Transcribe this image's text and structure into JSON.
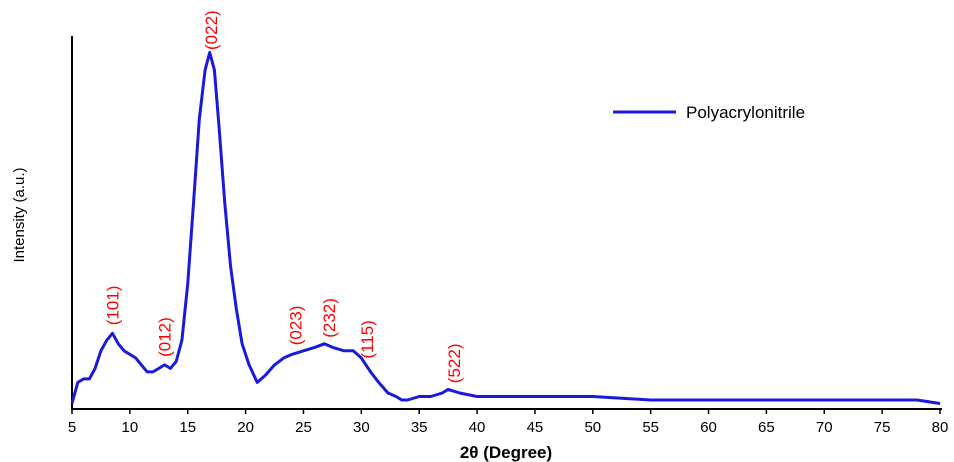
{
  "chart_data": {
    "type": "line",
    "title": "",
    "xlabel": "2θ (Degree)",
    "ylabel": "Intensity (a.u.)",
    "xlim": [
      5,
      80
    ],
    "ylim": [
      0,
      100
    ],
    "xticks": [
      5,
      10,
      15,
      20,
      25,
      30,
      35,
      40,
      45,
      50,
      55,
      60,
      65,
      70,
      75,
      80
    ],
    "grid": false,
    "legend": {
      "position": "top-right",
      "entries": [
        "Polyacrylonitrile"
      ]
    },
    "series": [
      {
        "name": "Polyacrylonitrile",
        "color": "#1a1adb",
        "x": [
          5,
          5.5,
          6,
          6.5,
          7,
          7.5,
          8,
          8.5,
          9,
          9.5,
          10,
          10.5,
          11,
          11.5,
          12,
          12.5,
          13,
          13.5,
          14,
          14.5,
          15,
          15.5,
          16,
          16.5,
          16.9,
          17.3,
          17.7,
          18.2,
          18.7,
          19.2,
          19.7,
          20.3,
          21,
          21.7,
          22.5,
          23.3,
          24,
          25,
          26,
          26.8,
          27.5,
          28.5,
          29.3,
          30,
          30.8,
          31.5,
          32.3,
          33,
          33.5,
          34,
          35,
          36,
          37,
          37.5,
          38.5,
          40,
          42,
          45,
          50,
          55,
          60,
          65,
          70,
          75,
          78,
          80
        ],
        "y": [
          1,
          7,
          8,
          8,
          11,
          16,
          19,
          21,
          18,
          16,
          15,
          14,
          12,
          10,
          10,
          11,
          12,
          11,
          13,
          19,
          35,
          58,
          82,
          96,
          101,
          96,
          80,
          58,
          40,
          28,
          18,
          12,
          7,
          9,
          12,
          14,
          15,
          16,
          17,
          18,
          17,
          16,
          16,
          14,
          10,
          7,
          4,
          3,
          2,
          2,
          3,
          3,
          4,
          5,
          4,
          3,
          3,
          3,
          3,
          2,
          2,
          2,
          2,
          2,
          2,
          1
        ]
      }
    ],
    "annotations": [
      {
        "text": "(101)",
        "x": 8.5,
        "color": "#ff0000"
      },
      {
        "text": "(012)",
        "x": 13,
        "color": "#ff0000"
      },
      {
        "text": "(022)",
        "x": 17,
        "color": "#ff0000"
      },
      {
        "text": "(023)",
        "x": 24.3,
        "color": "#ff0000"
      },
      {
        "text": "(232)",
        "x": 27.2,
        "color": "#ff0000"
      },
      {
        "text": "(115)",
        "x": 30.5,
        "color": "#ff0000"
      },
      {
        "text": "(522)",
        "x": 38,
        "color": "#ff0000"
      }
    ]
  }
}
